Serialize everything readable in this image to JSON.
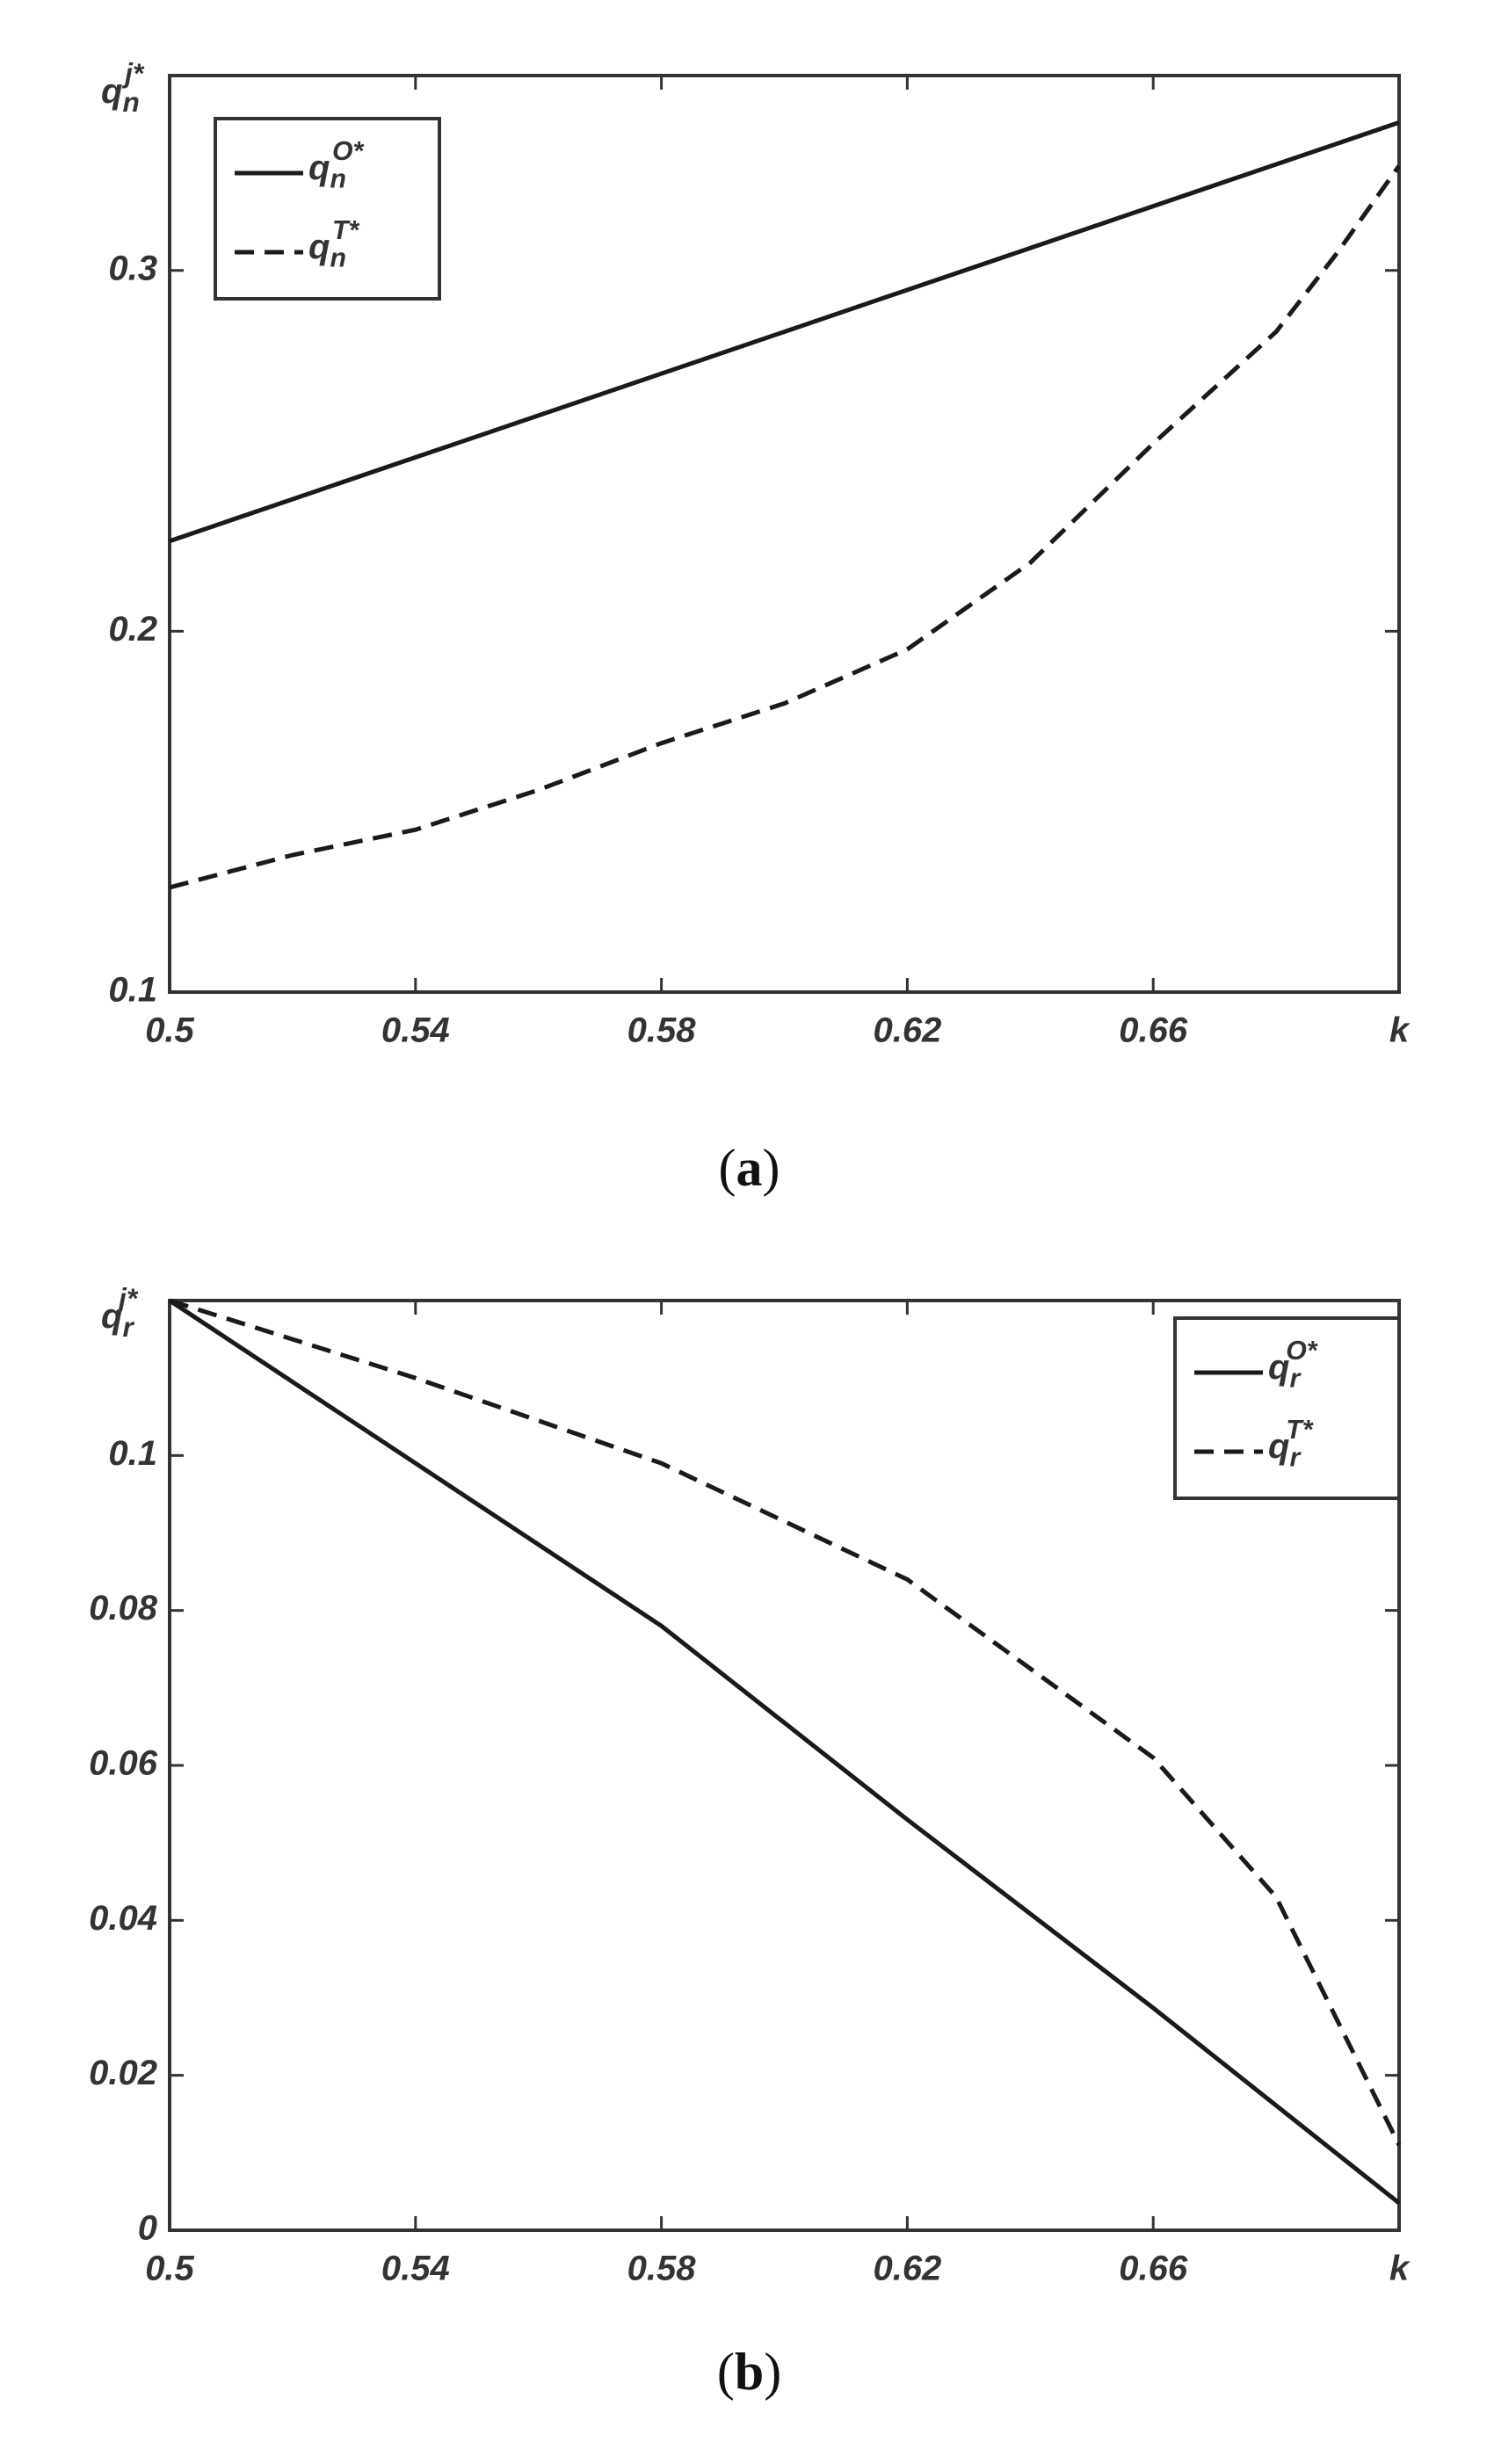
{
  "chart_data": [
    {
      "type": "line",
      "ylabel": {
        "base": "q",
        "sub": "n",
        "sup": "j*"
      },
      "xlim": [
        0.5,
        0.7
      ],
      "ylim": [
        0.1,
        0.354
      ],
      "xticks": [
        0.5,
        0.54,
        0.58,
        0.62,
        0.66,
        {
          "value": 0.7,
          "label": "k"
        }
      ],
      "yticks": [
        0.1,
        0.2,
        0.3
      ],
      "legend": "upper left",
      "caption": [
        "(",
        "a",
        ")"
      ],
      "series": [
        {
          "name": "q",
          "name_sub": "n",
          "name_sup": "O*",
          "color": "#1a1a1a",
          "dash": false,
          "x": [
            0.5,
            0.7
          ],
          "values": [
            0.225,
            0.341
          ]
        },
        {
          "name": "q",
          "name_sub": "n",
          "name_sup": "T*",
          "color": "#1a1a1a",
          "dash": true,
          "x": [
            0.5,
            0.52,
            0.54,
            0.56,
            0.58,
            0.6,
            0.62,
            0.64,
            0.66,
            0.68,
            0.69,
            0.7
          ],
          "values": [
            0.129,
            0.138,
            0.145,
            0.156,
            0.169,
            0.18,
            0.195,
            0.219,
            0.252,
            0.283,
            0.305,
            0.329
          ]
        }
      ]
    },
    {
      "type": "line",
      "ylabel": {
        "base": "q",
        "sub": "r",
        "sup": "j*"
      },
      "xlim": [
        0.5,
        0.7
      ],
      "ylim": [
        0,
        0.12
      ],
      "xticks": [
        0.5,
        0.54,
        0.58,
        0.62,
        0.66,
        {
          "value": 0.7,
          "label": "k"
        }
      ],
      "yticks": [
        0,
        0.02,
        0.04,
        0.06,
        0.08,
        0.1
      ],
      "legend": "upper right",
      "caption": [
        "(",
        "b",
        ")"
      ],
      "series": [
        {
          "name": "q",
          "name_sub": "r",
          "name_sup": "O*",
          "color": "#1a1a1a",
          "dash": false,
          "x": [
            0.5,
            0.54,
            0.58,
            0.62,
            0.66,
            0.7
          ],
          "values": [
            0.12,
            0.099,
            0.078,
            0.053,
            0.0287,
            0.0035
          ]
        },
        {
          "name": "q",
          "name_sub": "r",
          "name_sup": "T*",
          "color": "#1a1a1a",
          "dash": true,
          "x": [
            0.5,
            0.54,
            0.58,
            0.62,
            0.66,
            0.68,
            0.7
          ],
          "values": [
            0.12,
            0.11,
            0.099,
            0.084,
            0.061,
            0.043,
            0.011
          ]
        }
      ]
    }
  ]
}
